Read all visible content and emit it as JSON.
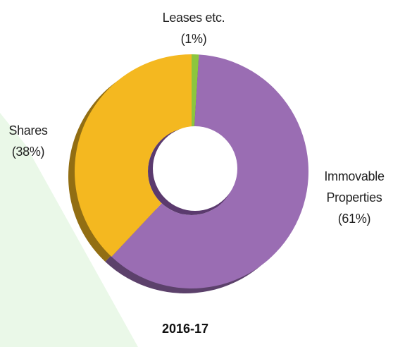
{
  "chart_data": {
    "type": "donut",
    "title": "2016-17",
    "categories": [
      "Leases etc.",
      "Immovable Properties",
      "Shares"
    ],
    "values": [
      1,
      61,
      38
    ],
    "value_labels": [
      "(1%)",
      "(61%)",
      "(38%)"
    ],
    "colors": [
      "#8cc63e",
      "#9a6db3",
      "#f4b820"
    ]
  }
}
